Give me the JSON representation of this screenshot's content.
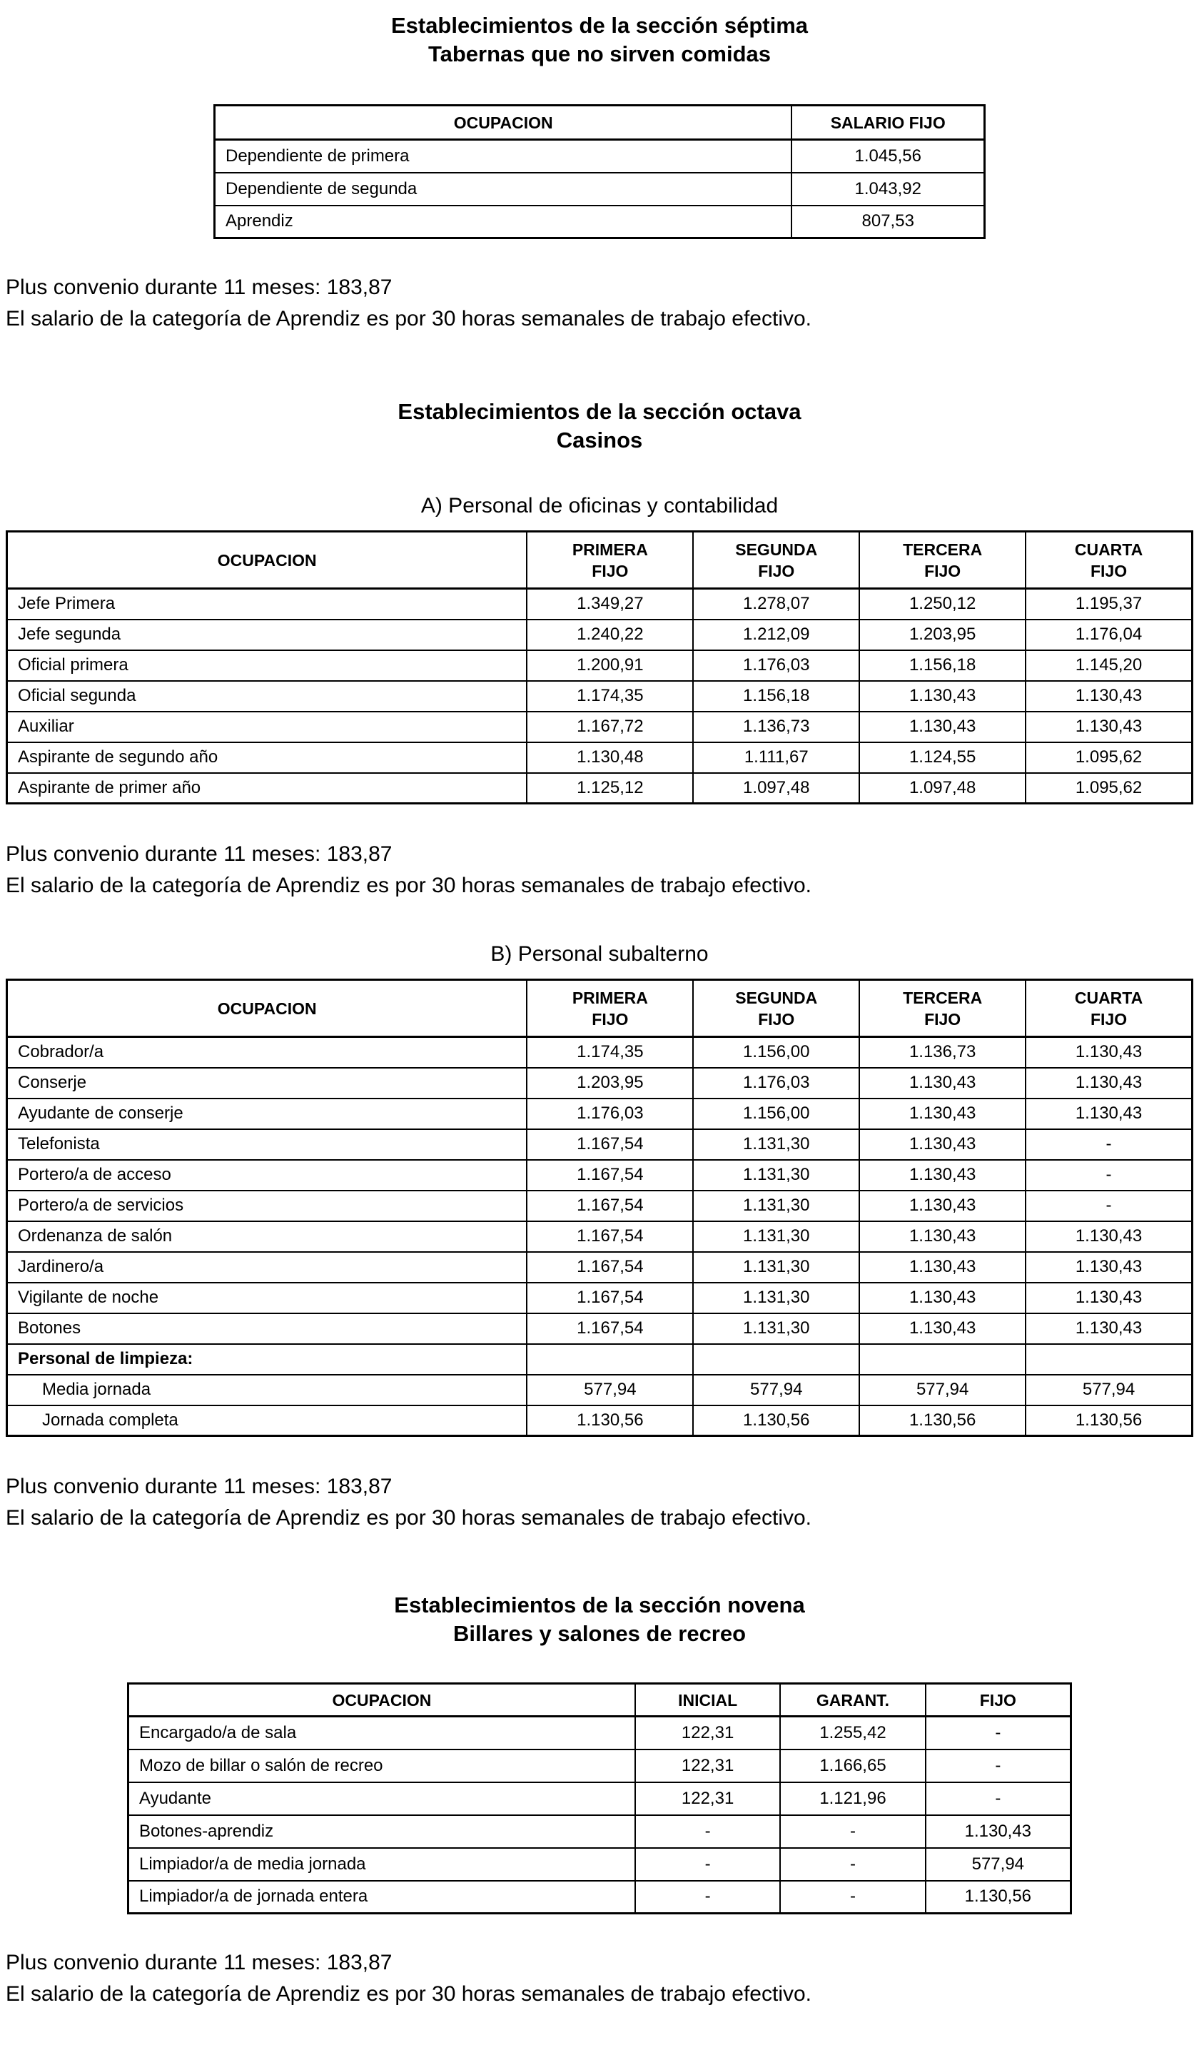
{
  "s7": {
    "title1": "Establecimientos de la sección séptima",
    "title2": "Tabernas que no sirven comidas",
    "table": {
      "columns": [
        "OCUPACION",
        "SALARIO FIJO"
      ],
      "rows": [
        {
          "label": "Dependiente de primera",
          "values": [
            "1.045,56"
          ]
        },
        {
          "label": "Dependiente de segunda",
          "values": [
            "1.043,92"
          ]
        },
        {
          "label": "Aprendiz",
          "values": [
            "807,53"
          ]
        }
      ]
    },
    "notes": [
      "Plus convenio durante 11 meses: 183,87",
      "El salario de la categoría de Aprendiz es por 30 horas semanales de trabajo efectivo."
    ]
  },
  "s8": {
    "title1": "Establecimientos de la sección octava",
    "title2": "Casinos",
    "a": {
      "heading": "A) Personal de oficinas y contabilidad",
      "table": {
        "columns": [
          "OCUPACION",
          "PRIMERA\nFIJO",
          "SEGUNDA\nFIJO",
          "TERCERA\nFIJO",
          "CUARTA\nFIJO"
        ],
        "rows": [
          {
            "label": "Jefe Primera",
            "values": [
              "1.349,27",
              "1.278,07",
              "1.250,12",
              "1.195,37"
            ]
          },
          {
            "label": "Jefe segunda",
            "values": [
              "1.240,22",
              "1.212,09",
              "1.203,95",
              "1.176,04"
            ]
          },
          {
            "label": "Oficial primera",
            "values": [
              "1.200,91",
              "1.176,03",
              "1.156,18",
              "1.145,20"
            ]
          },
          {
            "label": "Oficial segunda",
            "values": [
              "1.174,35",
              "1.156,18",
              "1.130,43",
              "1.130,43"
            ]
          },
          {
            "label": "Auxiliar",
            "values": [
              "1.167,72",
              "1.136,73",
              "1.130,43",
              "1.130,43"
            ]
          },
          {
            "label": "Aspirante de segundo año",
            "values": [
              "1.130,48",
              "1.111,67",
              "1.124,55",
              "1.095,62"
            ]
          },
          {
            "label": "Aspirante de primer año",
            "values": [
              "1.125,12",
              "1.097,48",
              "1.097,48",
              "1.095,62"
            ]
          }
        ]
      },
      "notes": [
        "Plus convenio durante 11 meses: 183,87",
        "El salario de la categoría de Aprendiz es por 30 horas semanales de trabajo efectivo."
      ]
    },
    "b": {
      "heading": "B) Personal subalterno",
      "table": {
        "columns": [
          "OCUPACION",
          "PRIMERA\nFIJO",
          "SEGUNDA\nFIJO",
          "TERCERA\nFIJO",
          "CUARTA\nFIJO"
        ],
        "rows": [
          {
            "label": "Cobrador/a",
            "values": [
              "1.174,35",
              "1.156,00",
              "1.136,73",
              "1.130,43"
            ]
          },
          {
            "label": "Conserje",
            "values": [
              "1.203,95",
              "1.176,03",
              "1.130,43",
              "1.130,43"
            ]
          },
          {
            "label": "Ayudante de conserje",
            "values": [
              "1.176,03",
              "1.156,00",
              "1.130,43",
              "1.130,43"
            ]
          },
          {
            "label": "Telefonista",
            "values": [
              "1.167,54",
              "1.131,30",
              "1.130,43",
              "-"
            ]
          },
          {
            "label": "Portero/a de acceso",
            "values": [
              "1.167,54",
              "1.131,30",
              "1.130,43",
              "-"
            ]
          },
          {
            "label": "Portero/a de servicios",
            "values": [
              "1.167,54",
              "1.131,30",
              "1.130,43",
              "-"
            ]
          },
          {
            "label": "Ordenanza de salón",
            "values": [
              "1.167,54",
              "1.131,30",
              "1.130,43",
              "1.130,43"
            ]
          },
          {
            "label": "Jardinero/a",
            "values": [
              "1.167,54",
              "1.131,30",
              "1.130,43",
              "1.130,43"
            ]
          },
          {
            "label": "Vigilante de noche",
            "values": [
              "1.167,54",
              "1.131,30",
              "1.130,43",
              "1.130,43"
            ]
          },
          {
            "label": "Botones",
            "values": [
              "1.167,54",
              "1.131,30",
              "1.130,43",
              "1.130,43"
            ]
          },
          {
            "label": "Personal de limpieza:",
            "bold": true,
            "values": [
              "",
              "",
              "",
              ""
            ]
          },
          {
            "label": "Media jornada",
            "indent": true,
            "values": [
              "577,94",
              "577,94",
              "577,94",
              "577,94"
            ]
          },
          {
            "label": "Jornada completa",
            "indent": true,
            "values": [
              "1.130,56",
              "1.130,56",
              "1.130,56",
              "1.130,56"
            ]
          }
        ]
      },
      "notes": [
        "Plus convenio durante 11 meses: 183,87",
        "El salario de la categoría de Aprendiz es por 30 horas semanales de trabajo efectivo."
      ]
    }
  },
  "s9": {
    "title1": "Establecimientos de la sección novena",
    "title2": "Billares y salones de recreo",
    "table": {
      "columns": [
        "OCUPACION",
        "INICIAL",
        "GARANT.",
        "FIJO"
      ],
      "rows": [
        {
          "label": "Encargado/a de sala",
          "values": [
            "122,31",
            "1.255,42",
            "-"
          ]
        },
        {
          "label": "Mozo de billar o salón de recreo",
          "values": [
            "122,31",
            "1.166,65",
            "-"
          ]
        },
        {
          "label": "Ayudante",
          "values": [
            "122,31",
            "1.121,96",
            "-"
          ]
        },
        {
          "label": "Botones-aprendiz",
          "values": [
            "-",
            "-",
            "1.130,43"
          ]
        },
        {
          "label": "Limpiador/a de media jornada",
          "values": [
            "-",
            "-",
            "577,94"
          ]
        },
        {
          "label": "Limpiador/a de jornada entera",
          "values": [
            "-",
            "-",
            "1.130,56"
          ]
        }
      ]
    },
    "notes": [
      "Plus convenio durante 11 meses: 183,87",
      "El salario de la categoría de Aprendiz es por 30 horas semanales de trabajo efectivo."
    ]
  }
}
